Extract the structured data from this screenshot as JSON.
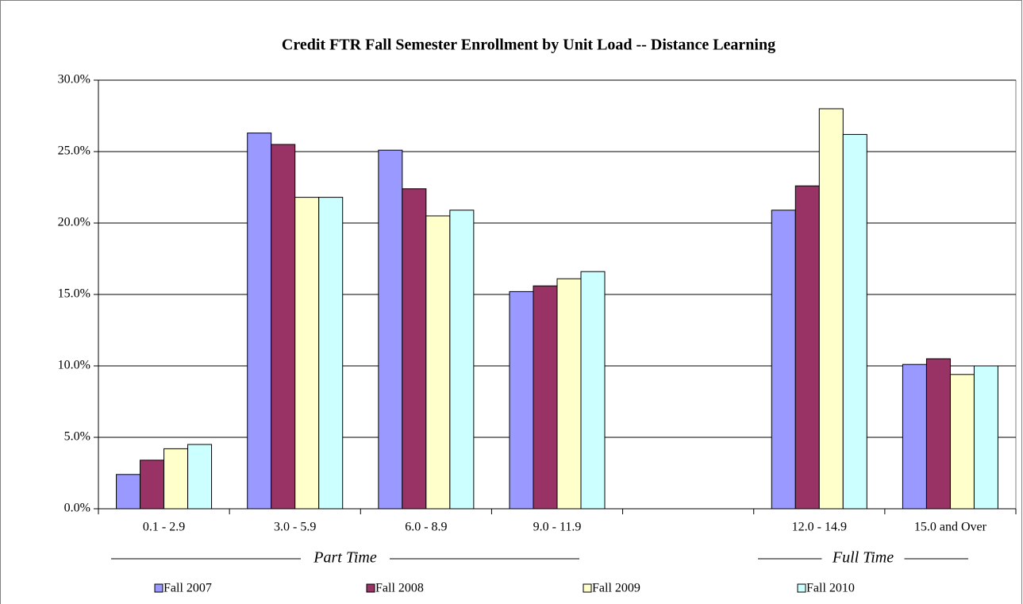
{
  "chart_data": {
    "type": "bar",
    "title": "Credit FTR Fall Semester Enrollment by Unit Load -- Distance Learning",
    "categories": [
      "0.1 - 2.9",
      "3.0 - 5.9",
      "6.0 - 8.9",
      "9.0 - 11.9",
      null,
      "12.0 - 14.9",
      "15.0 and Over"
    ],
    "series": [
      {
        "name": "Fall 2007",
        "color": "#9999ff",
        "values": [
          2.4,
          26.3,
          25.1,
          15.2,
          null,
          20.9,
          10.1
        ]
      },
      {
        "name": "Fall 2008",
        "color": "#993366",
        "values": [
          3.4,
          25.5,
          22.4,
          15.6,
          null,
          22.6,
          10.5
        ]
      },
      {
        "name": "Fall 2009",
        "color": "#ffffcc",
        "values": [
          4.2,
          21.8,
          20.5,
          16.1,
          null,
          28.0,
          9.4
        ]
      },
      {
        "name": "Fall 2010",
        "color": "#ccffff",
        "values": [
          4.5,
          21.8,
          20.9,
          16.6,
          null,
          26.2,
          10.0
        ]
      }
    ],
    "ylim": [
      0,
      30
    ],
    "yticks": [
      {
        "value": 0,
        "label": "0.0%"
      },
      {
        "value": 5,
        "label": "5.0%"
      },
      {
        "value": 10,
        "label": "10.0%"
      },
      {
        "value": 15,
        "label": "15.0%"
      },
      {
        "value": 20,
        "label": "20.0%"
      },
      {
        "value": 25,
        "label": "25.0%"
      },
      {
        "value": 30,
        "label": "30.0%"
      }
    ],
    "grid": true,
    "legend": "bottom",
    "annotations": [
      "Part Time",
      "Full Time"
    ]
  }
}
